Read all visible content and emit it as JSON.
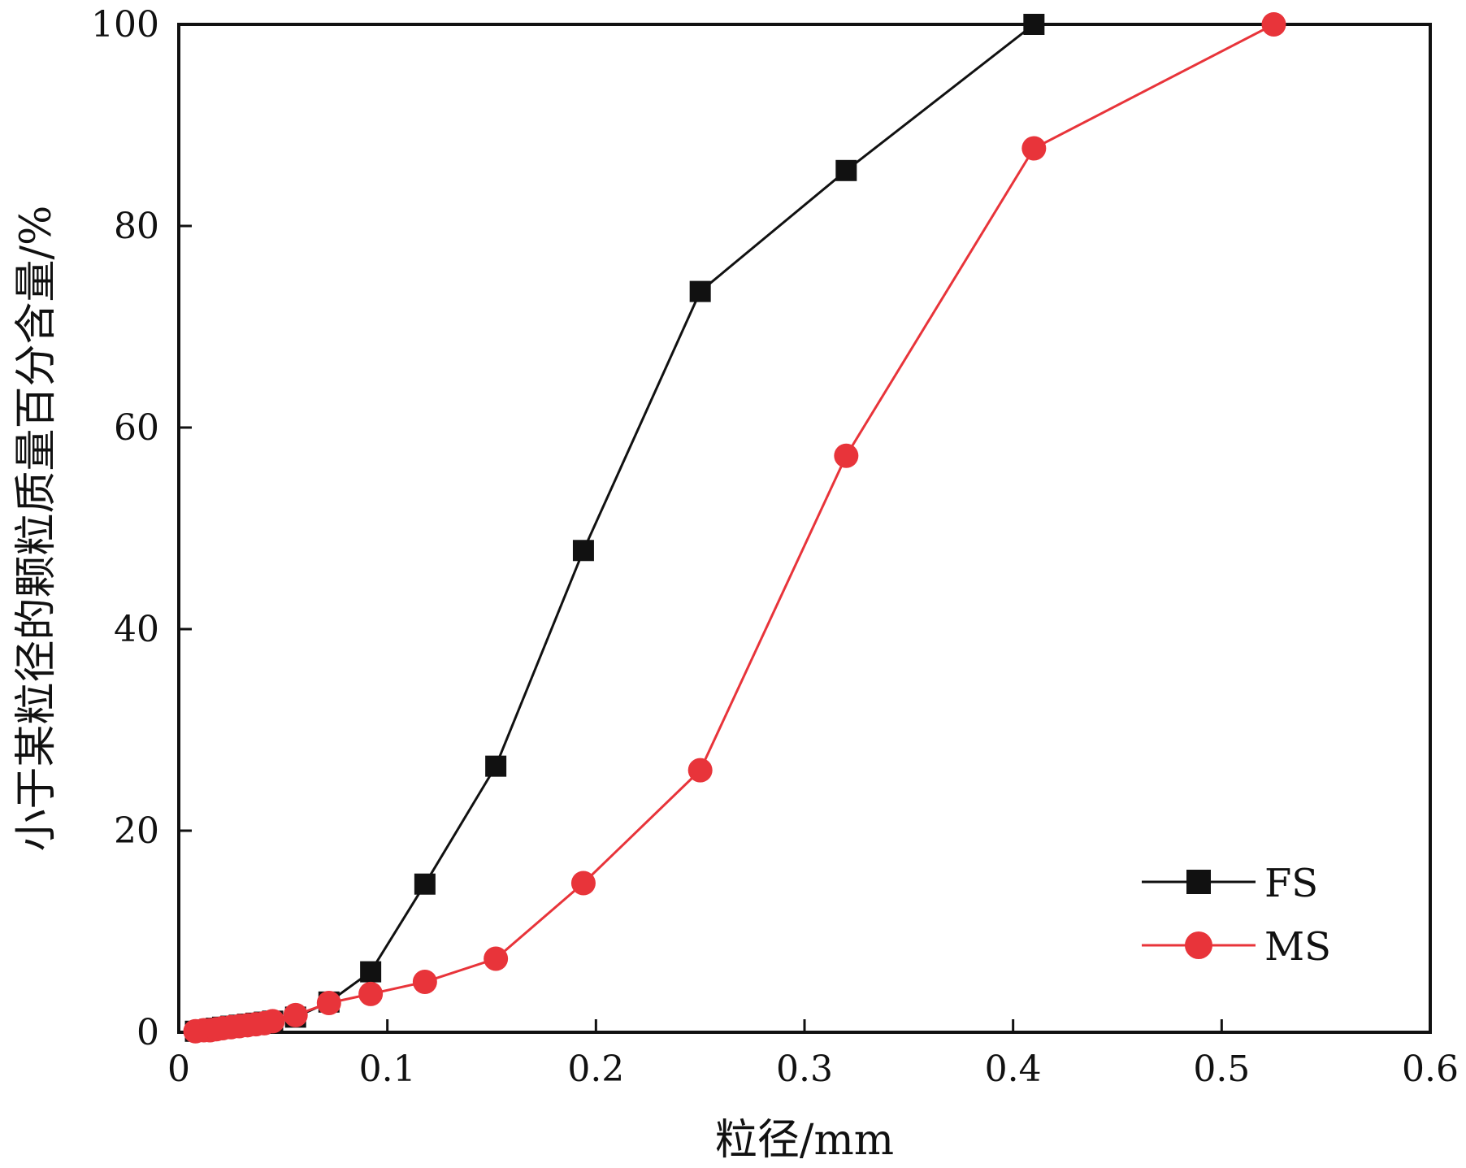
{
  "chart_data": {
    "type": "line",
    "xlabel": "粒径/mm",
    "ylabel": "小于某粒径的颗粒质量百分含量/%",
    "xlim": [
      0,
      0.6
    ],
    "ylim": [
      0,
      100
    ],
    "xticks": [
      "0",
      "0.1",
      "0.2",
      "0.3",
      "0.4",
      "0.5",
      "0.6"
    ],
    "yticks": [
      "0",
      "20",
      "40",
      "60",
      "80",
      "100"
    ],
    "legend_position": "bottom-right",
    "grid": false,
    "series": [
      {
        "name": "FS",
        "color": "#111111",
        "marker": "square",
        "points": [
          [
            0.008,
            0.1
          ],
          [
            0.012,
            0.2
          ],
          [
            0.015,
            0.3
          ],
          [
            0.018,
            0.4
          ],
          [
            0.021,
            0.5
          ],
          [
            0.025,
            0.6
          ],
          [
            0.029,
            0.7
          ],
          [
            0.033,
            0.8
          ],
          [
            0.037,
            0.9
          ],
          [
            0.041,
            1.0
          ],
          [
            0.045,
            1.1
          ],
          [
            0.056,
            1.5
          ],
          [
            0.072,
            3.0
          ],
          [
            0.092,
            6.0
          ],
          [
            0.118,
            14.7
          ],
          [
            0.152,
            26.4
          ],
          [
            0.194,
            47.8
          ],
          [
            0.25,
            73.5
          ],
          [
            0.32,
            85.5
          ],
          [
            0.41,
            100.0
          ]
        ]
      },
      {
        "name": "MS",
        "color": "#e8343a",
        "marker": "circle",
        "points": [
          [
            0.008,
            0.1
          ],
          [
            0.012,
            0.2
          ],
          [
            0.015,
            0.2
          ],
          [
            0.018,
            0.3
          ],
          [
            0.021,
            0.4
          ],
          [
            0.025,
            0.5
          ],
          [
            0.029,
            0.6
          ],
          [
            0.033,
            0.7
          ],
          [
            0.037,
            0.8
          ],
          [
            0.041,
            0.9
          ],
          [
            0.045,
            1.1
          ],
          [
            0.056,
            1.7
          ],
          [
            0.072,
            2.9
          ],
          [
            0.092,
            3.8
          ],
          [
            0.118,
            5.0
          ],
          [
            0.152,
            7.3
          ],
          [
            0.194,
            14.8
          ],
          [
            0.25,
            26.0
          ],
          [
            0.32,
            57.2
          ],
          [
            0.41,
            87.7
          ],
          [
            0.525,
            100.0
          ]
        ]
      }
    ]
  }
}
